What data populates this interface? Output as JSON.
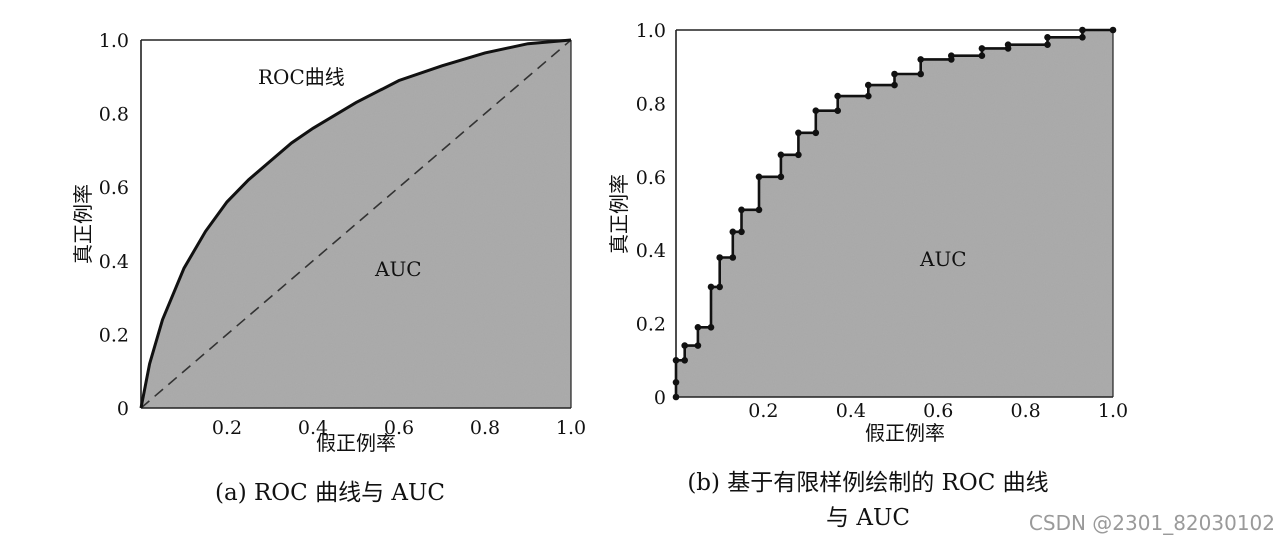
{
  "chart_data": [
    {
      "type": "area",
      "x_ticks": [
        "0.2",
        "0.4",
        "0.6",
        "0.8",
        "1.0"
      ],
      "y_ticks": [
        "0",
        "0.2",
        "0.4",
        "0.6",
        "0.8",
        "1.0"
      ],
      "xlabel": "假正例率",
      "ylabel": "真正例率",
      "xlim": [
        0,
        1
      ],
      "ylim": [
        0,
        1
      ],
      "curve_label": "ROC曲线",
      "area_label": "AUC",
      "caption": "(a) ROC 曲线与 AUC",
      "series": [
        {
          "x": [
            0,
            0.02,
            0.05,
            0.1,
            0.15,
            0.2,
            0.25,
            0.3,
            0.35,
            0.4,
            0.5,
            0.6,
            0.7,
            0.8,
            0.9,
            1.0
          ],
          "values": [
            0,
            0.12,
            0.24,
            0.38,
            0.48,
            0.56,
            0.62,
            0.67,
            0.72,
            0.76,
            0.83,
            0.89,
            0.93,
            0.965,
            0.99,
            1.0
          ]
        },
        {
          "x": [
            0,
            1
          ],
          "values": [
            0,
            1
          ],
          "style": "dashed"
        }
      ]
    },
    {
      "type": "line",
      "x_ticks": [
        "0",
        "0.2",
        "0.4",
        "0.6",
        "0.8",
        "1.0"
      ],
      "y_ticks": [
        "0",
        "0.2",
        "0.4",
        "0.6",
        "0.8",
        "1.0"
      ],
      "xlabel": "假正例率",
      "ylabel": "真正例率",
      "xlim": [
        0,
        1
      ],
      "ylim": [
        0,
        1
      ],
      "area_label": "AUC",
      "caption_lines": [
        "(b) 基于有限样例绘制的 ROC 曲线",
        "与 AUC"
      ],
      "series": [
        {
          "x": [
            0,
            0,
            0,
            0.02,
            0.02,
            0.05,
            0.05,
            0.08,
            0.08,
            0.1,
            0.1,
            0.13,
            0.13,
            0.15,
            0.15,
            0.19,
            0.19,
            0.24,
            0.24,
            0.28,
            0.28,
            0.32,
            0.32,
            0.37,
            0.37,
            0.44,
            0.44,
            0.5,
            0.5,
            0.56,
            0.56,
            0.63,
            0.63,
            0.7,
            0.7,
            0.76,
            0.76,
            0.85,
            0.85,
            0.93,
            0.93,
            1.0
          ],
          "values": [
            0,
            0.04,
            0.1,
            0.1,
            0.14,
            0.14,
            0.19,
            0.19,
            0.3,
            0.3,
            0.38,
            0.38,
            0.45,
            0.45,
            0.51,
            0.51,
            0.6,
            0.6,
            0.66,
            0.66,
            0.72,
            0.72,
            0.78,
            0.78,
            0.82,
            0.82,
            0.85,
            0.85,
            0.88,
            0.88,
            0.92,
            0.92,
            0.93,
            0.93,
            0.95,
            0.95,
            0.96,
            0.96,
            0.98,
            0.98,
            1.0,
            1.0
          ]
        }
      ]
    }
  ],
  "watermark": "CSDN @2301_82030102"
}
